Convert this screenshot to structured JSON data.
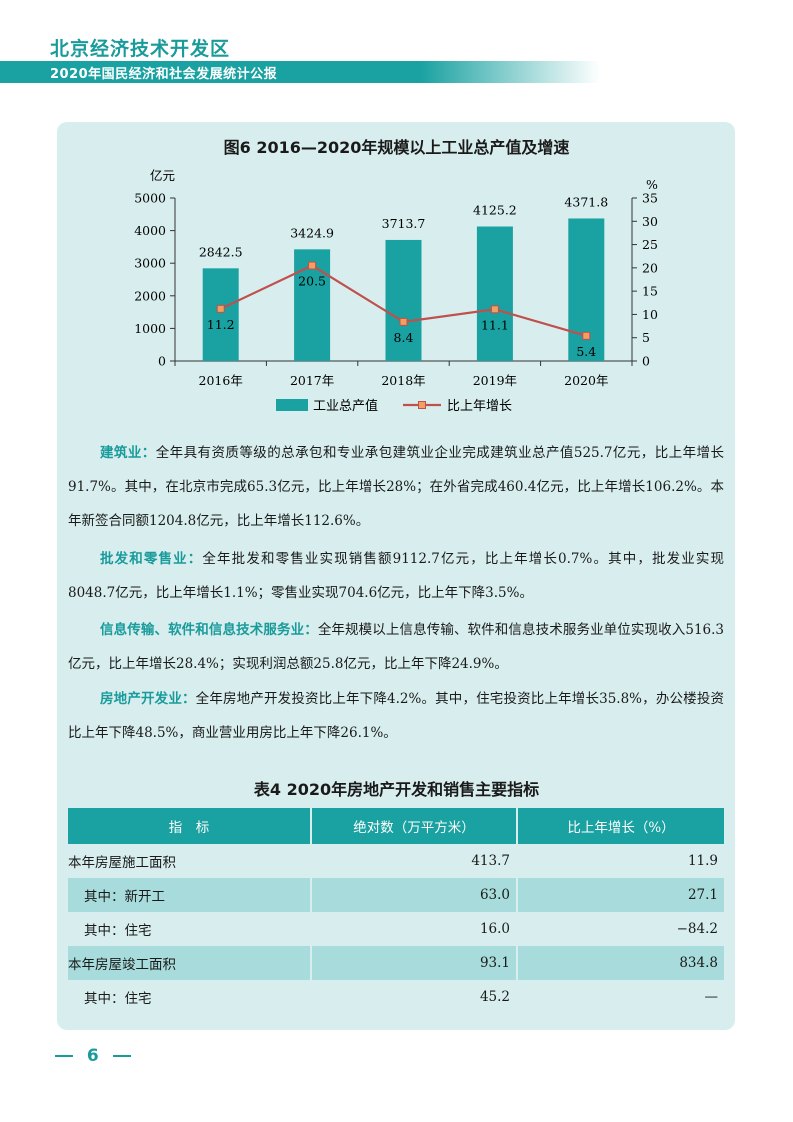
{
  "header": {
    "title": "北京经济技术开发区",
    "subtitle": "2020年国民经济和社会发展统计公报"
  },
  "chart_data": {
    "type": "bar",
    "title": "图6  2016—2020年规模以上工业总产值及增速",
    "categories": [
      "2016年",
      "2017年",
      "2018年",
      "2019年",
      "2020年"
    ],
    "y_left_unit": "亿元",
    "y_right_unit": "%",
    "y_left_range": [
      0,
      5000
    ],
    "y_left_ticks": [
      0,
      1000,
      2000,
      3000,
      4000,
      5000
    ],
    "y_right_range": [
      0,
      35
    ],
    "y_right_ticks": [
      0,
      5,
      10,
      15,
      20,
      25,
      30,
      35
    ],
    "series": [
      {
        "name": "工业总产值",
        "type": "bar",
        "axis": "left",
        "color": "#1aa1a1",
        "values": [
          2842.5,
          3424.9,
          3713.7,
          4125.2,
          4371.8
        ],
        "labels": [
          "2842.5",
          "3424.9",
          "3713.7",
          "4125.2",
          "4371.8"
        ]
      },
      {
        "name": "比上年增长",
        "type": "line",
        "axis": "right",
        "color": "#c0504d",
        "marker_color": "#f0a060",
        "values": [
          11.2,
          20.5,
          8.4,
          11.1,
          5.4
        ],
        "labels": [
          "11.2",
          "20.5",
          "8.4",
          "11.1",
          "5.4"
        ]
      }
    ],
    "legend": "bottom",
    "grid": false
  },
  "paragraphs": [
    {
      "lead": "建筑业：",
      "text": "全年具有资质等级的总承包和专业承包建筑业企业完成建筑业总产值525.7亿元，比上年增长91.7%。其中，在北京市完成65.3亿元，比上年增长28%；在外省完成460.4亿元，比上年增长106.2%。本年新签合同额1204.8亿元，比上年增长112.6%。"
    },
    {
      "lead": "批发和零售业：",
      "text": "全年批发和零售业实现销售额9112.7亿元，比上年增长0.7%。其中，批发业实现8048.7亿元，比上年增长1.1%；零售业实现704.6亿元，比上年下降3.5%。"
    },
    {
      "lead": "信息传输、软件和信息技术服务业：",
      "text": "全年规模以上信息传输、软件和信息技术服务业单位实现收入516.3亿元，比上年增长28.4%；实现利润总额25.8亿元，比上年下降24.9%。"
    },
    {
      "lead": "房地产开发业：",
      "text": "全年房地产开发投资比上年下降4.2%。其中，住宅投资比上年增长35.8%，办公楼投资比上年下降48.5%，商业营业用房比上年下降26.1%。"
    }
  ],
  "table": {
    "title": "表4  2020年房地产开发和销售主要指标",
    "headers": [
      "指　标",
      "绝对数（万平方米）",
      "比上年增长（%）"
    ],
    "rows": [
      {
        "label": "本年房屋施工面积",
        "value": "413.7",
        "growth": "11.9"
      },
      {
        "label": "其中：新开工",
        "value": "63.0",
        "growth": "27.1"
      },
      {
        "label": "其中：住宅",
        "value": "16.0",
        "growth": "−84.2"
      },
      {
        "label": "本年房屋竣工面积",
        "value": "93.1",
        "growth": "834.8"
      },
      {
        "label": "其中：住宅",
        "value": "45.2",
        "growth": "—"
      }
    ]
  },
  "footer": {
    "page_number": "6"
  }
}
